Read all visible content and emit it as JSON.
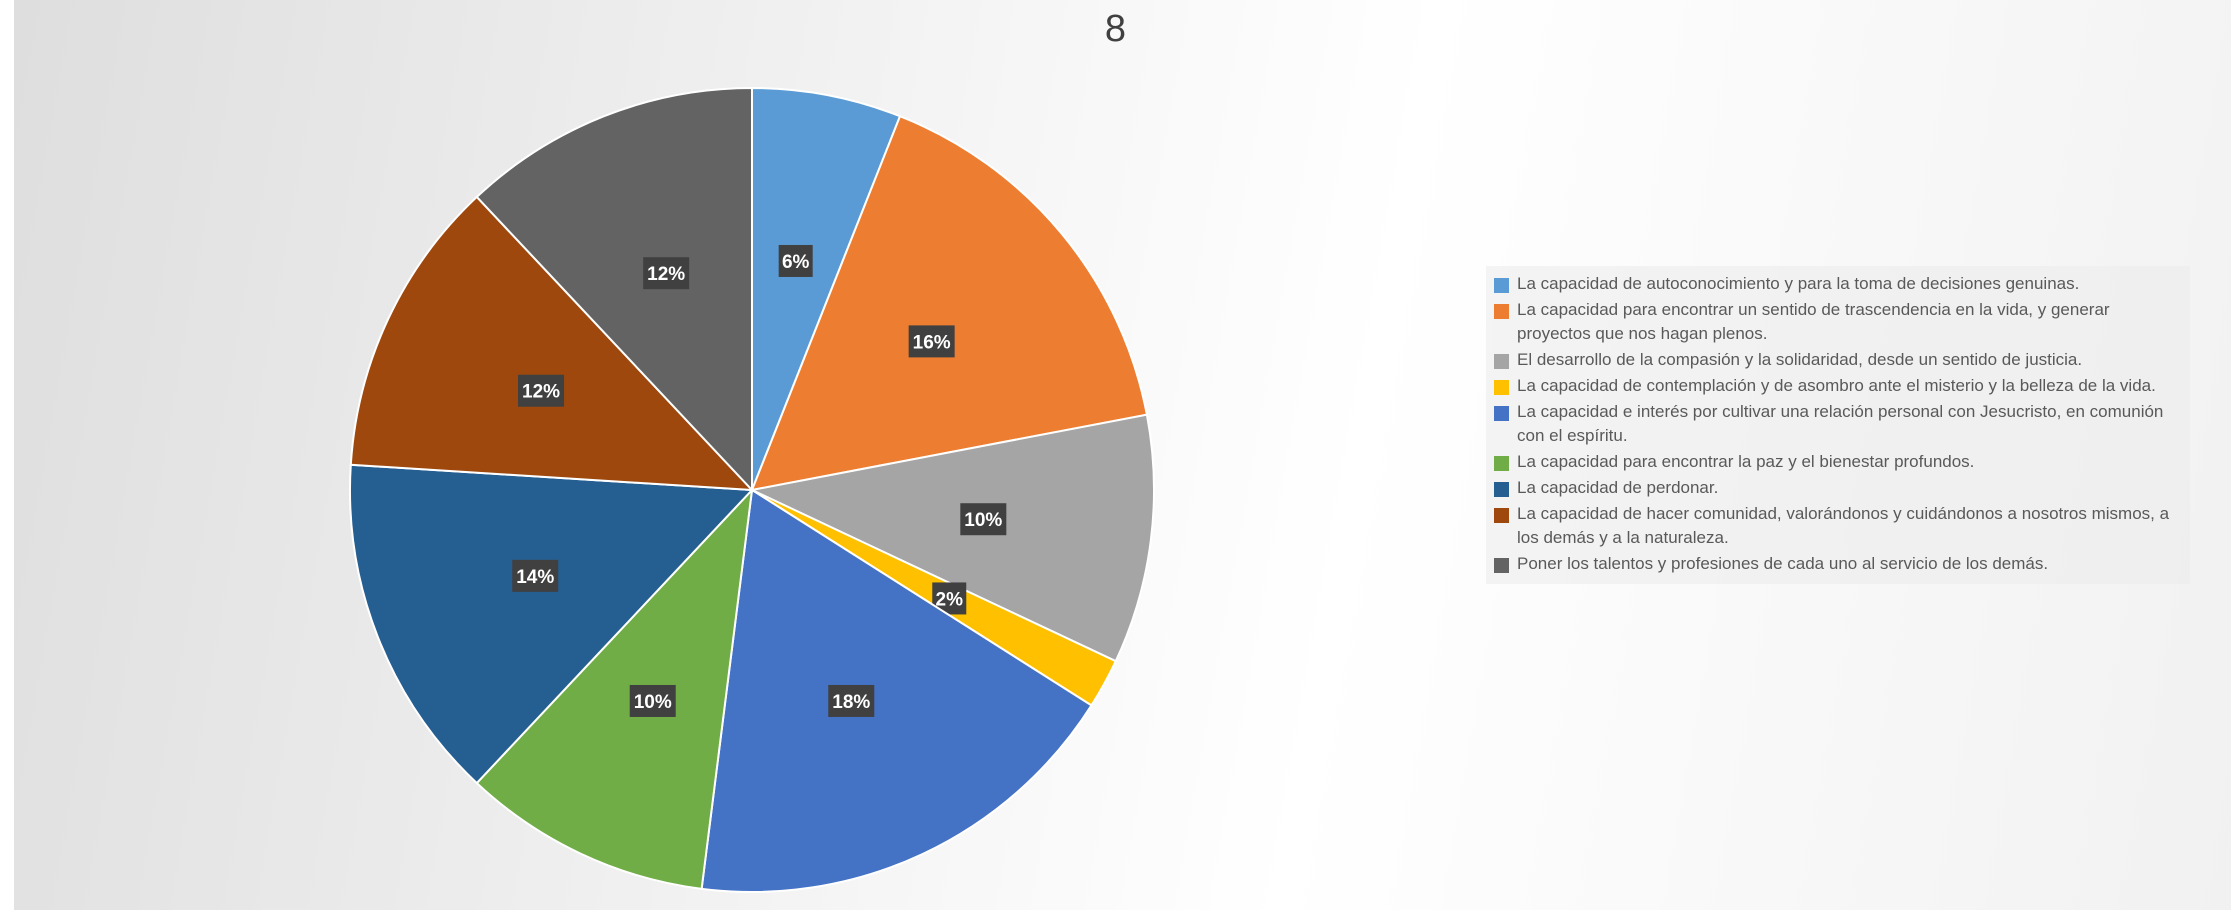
{
  "chart_data": {
    "type": "pie",
    "title": "8",
    "legend_position": "right",
    "labels": [
      "La capacidad de autoconocimiento y para la toma de decisiones genuinas.",
      "La capacidad para encontrar un sentido de trascendencia en la vida, y generar proyectos que nos hagan plenos.",
      "El desarrollo de la compasión y la solidaridad, desde un sentido de justicia.",
      "La capacidad de contemplación y de asombro ante el misterio y la belleza de la vida.",
      "La capacidad e interés por cultivar una relación personal con Jesucristo, en comunión con el espíritu.",
      "La capacidad para encontrar la paz y el bienestar profundos.",
      "La capacidad de perdonar.",
      "La capacidad de hacer comunidad, valorándonos y cuidándonos a nosotros mismos, a los demás y a la naturaleza.",
      "Poner los talentos y profesiones de cada uno al servicio de los demás."
    ],
    "values": [
      6,
      16,
      10,
      2,
      18,
      10,
      14,
      12,
      12
    ],
    "data_labels": [
      "6%",
      "16%",
      "10%",
      "2%",
      "18%",
      "10%",
      "14%",
      "12%",
      "12%"
    ],
    "colors": [
      "#5B9BD5",
      "#ED7D31",
      "#A5A5A5",
      "#FFC000",
      "#4472C4",
      "#70AD47",
      "#255E91",
      "#9E480E",
      "#636363"
    ]
  }
}
